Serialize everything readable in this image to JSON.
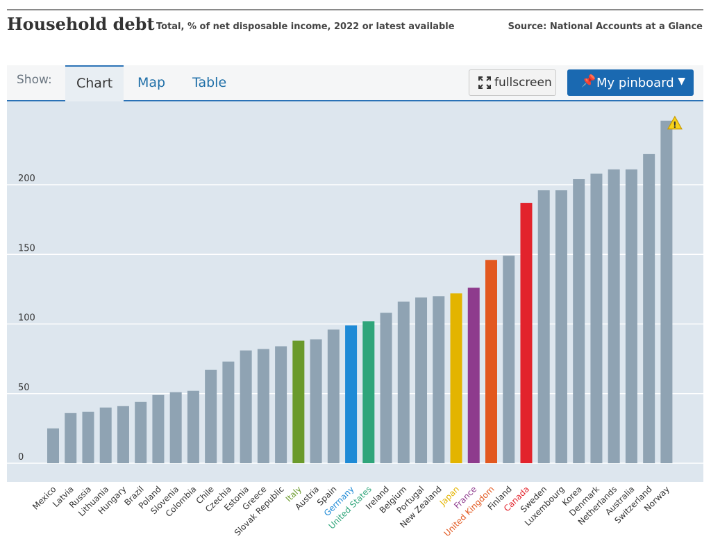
{
  "header": {
    "title": "Household debt",
    "subtitle": "Total, % of net disposable income, 2022 or latest available",
    "source": "Source: National Accounts at a Glance"
  },
  "toolbar": {
    "show_label": "Show:",
    "tabs": [
      {
        "label": "Chart",
        "active": true
      },
      {
        "label": "Map",
        "active": false
      },
      {
        "label": "Table",
        "active": false
      }
    ],
    "fullscreen_label": "fullscreen",
    "pinboard_label": "My pinboard",
    "pin_icon": "pin-icon",
    "fullscreen_icon": "expand-icon"
  },
  "colors": {
    "default_bar": "#8fa3b3",
    "plot_bg": "#dde6ee",
    "Italy": "#6a9a2b",
    "Germany": "#1e8ad6",
    "United States": "#2fa57a",
    "Japan": "#e3b400",
    "France": "#8e3b8d",
    "United Kingdom": "#e2581f",
    "Canada": "#e2232c"
  },
  "chart_data": {
    "type": "bar",
    "ylim": [
      0,
      250
    ],
    "yticks": [
      0,
      50,
      100,
      150,
      200
    ],
    "grid": true,
    "categories": [
      "Mexico",
      "Latvia",
      "Russia",
      "Lithuania",
      "Hungary",
      "Brazil",
      "Poland",
      "Slovenia",
      "Colombia",
      "Chile",
      "Czechia",
      "Estonia",
      "Greece",
      "Slovak Republic",
      "Italy",
      "Austria",
      "Spain",
      "Germany",
      "United States",
      "Ireland",
      "Belgium",
      "Portugal",
      "New Zealand",
      "Japan",
      "France",
      "United Kingdom",
      "Finland",
      "Canada",
      "Sweden",
      "Luxembourg",
      "Korea",
      "Denmark",
      "Netherlands",
      "Australia",
      "Switzerland",
      "Norway"
    ],
    "values": [
      25,
      36,
      37,
      40,
      41,
      44,
      49,
      51,
      52,
      67,
      73,
      81,
      82,
      84,
      88,
      89,
      96,
      99,
      102,
      108,
      116,
      119,
      120,
      122,
      126,
      146,
      149,
      187,
      196,
      196,
      204,
      208,
      211,
      211,
      222,
      246
    ],
    "highlighted": [
      "Italy",
      "Germany",
      "United States",
      "Japan",
      "France",
      "United Kingdom",
      "Canada"
    ],
    "annotation_icon": "warning-icon"
  }
}
